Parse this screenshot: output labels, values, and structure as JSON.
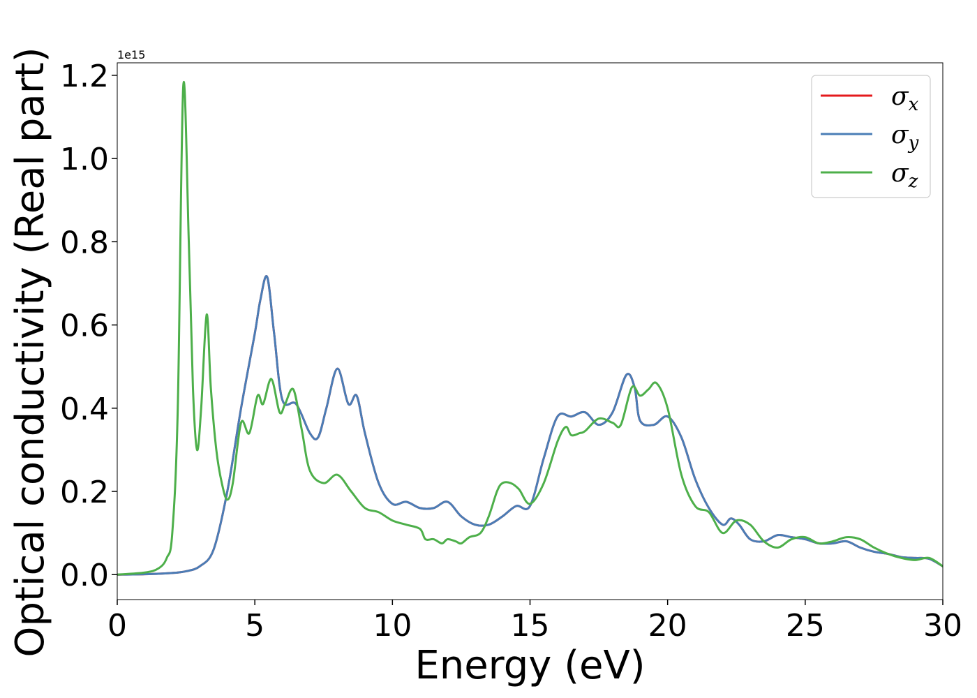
{
  "chart_data": {
    "type": "line",
    "xlabel": "Energy (eV)",
    "ylabel": "Optical conductivity (Real part)",
    "y_offset_label": "1e15",
    "y_scale": 1000000000000000.0,
    "xlim": [
      0,
      30
    ],
    "ylim": [
      -0.06,
      1.23
    ],
    "xticks": [
      0,
      5,
      10,
      15,
      20,
      25,
      30
    ],
    "xtick_labels": [
      "0",
      "5",
      "10",
      "15",
      "20",
      "25",
      "30"
    ],
    "yticks": [
      0.0,
      0.2,
      0.4,
      0.6,
      0.8,
      1.0,
      1.2
    ],
    "ytick_labels": [
      "0.0",
      "0.2",
      "0.4",
      "0.6",
      "0.8",
      "1.0",
      "1.2"
    ],
    "grid": false,
    "legend_position": "top-right",
    "series": [
      {
        "name": "σx",
        "symbol": "σ",
        "subscript": "x",
        "color": "#e41a1c",
        "x": [
          0,
          1.0,
          2.0,
          2.5,
          3.0,
          3.5,
          4.0,
          4.5,
          5.0,
          5.2,
          5.45,
          5.7,
          6.0,
          6.5,
          7.0,
          7.3,
          7.6,
          8.0,
          8.4,
          8.7,
          9.0,
          9.5,
          10.0,
          10.5,
          11.0,
          11.5,
          12.0,
          12.5,
          13.0,
          13.5,
          14.0,
          14.5,
          15.0,
          15.5,
          16.0,
          16.5,
          17.0,
          17.5,
          18.0,
          18.5,
          18.8,
          19.0,
          19.5,
          20.0,
          20.5,
          21.0,
          21.5,
          22.0,
          22.3,
          22.6,
          23.0,
          23.5,
          24.0,
          24.5,
          25.0,
          25.5,
          26.0,
          26.5,
          27.0,
          27.5,
          28.0,
          28.5,
          29.0,
          29.5,
          30.0
        ],
        "y": [
          0.0,
          0.001,
          0.004,
          0.008,
          0.02,
          0.06,
          0.2,
          0.4,
          0.58,
          0.66,
          0.715,
          0.58,
          0.42,
          0.41,
          0.34,
          0.33,
          0.4,
          0.495,
          0.41,
          0.43,
          0.34,
          0.22,
          0.17,
          0.175,
          0.16,
          0.16,
          0.175,
          0.14,
          0.12,
          0.12,
          0.14,
          0.165,
          0.165,
          0.28,
          0.38,
          0.38,
          0.39,
          0.36,
          0.39,
          0.48,
          0.45,
          0.37,
          0.36,
          0.38,
          0.33,
          0.23,
          0.16,
          0.12,
          0.135,
          0.12,
          0.085,
          0.08,
          0.095,
          0.09,
          0.085,
          0.075,
          0.075,
          0.08,
          0.065,
          0.055,
          0.05,
          0.042,
          0.04,
          0.038,
          0.02
        ]
      },
      {
        "name": "σy",
        "symbol": "σ",
        "subscript": "y",
        "color": "#4a7db6",
        "x": [
          0,
          1.0,
          2.0,
          2.5,
          3.0,
          3.5,
          4.0,
          4.5,
          5.0,
          5.2,
          5.45,
          5.7,
          6.0,
          6.5,
          7.0,
          7.3,
          7.6,
          8.0,
          8.4,
          8.7,
          9.0,
          9.5,
          10.0,
          10.5,
          11.0,
          11.5,
          12.0,
          12.5,
          13.0,
          13.5,
          14.0,
          14.5,
          15.0,
          15.5,
          16.0,
          16.5,
          17.0,
          17.5,
          18.0,
          18.5,
          18.8,
          19.0,
          19.5,
          20.0,
          20.5,
          21.0,
          21.5,
          22.0,
          22.3,
          22.6,
          23.0,
          23.5,
          24.0,
          24.5,
          25.0,
          25.5,
          26.0,
          26.5,
          27.0,
          27.5,
          28.0,
          28.5,
          29.0,
          29.5,
          30.0
        ],
        "y": [
          0.0,
          0.001,
          0.004,
          0.008,
          0.02,
          0.06,
          0.2,
          0.4,
          0.58,
          0.66,
          0.715,
          0.58,
          0.42,
          0.41,
          0.34,
          0.33,
          0.4,
          0.495,
          0.41,
          0.43,
          0.34,
          0.22,
          0.17,
          0.175,
          0.16,
          0.16,
          0.175,
          0.14,
          0.12,
          0.12,
          0.14,
          0.165,
          0.165,
          0.28,
          0.38,
          0.38,
          0.39,
          0.36,
          0.39,
          0.48,
          0.45,
          0.37,
          0.36,
          0.38,
          0.33,
          0.23,
          0.16,
          0.12,
          0.135,
          0.12,
          0.085,
          0.08,
          0.095,
          0.09,
          0.085,
          0.075,
          0.075,
          0.08,
          0.065,
          0.055,
          0.05,
          0.042,
          0.04,
          0.038,
          0.02
        ]
      },
      {
        "name": "σz",
        "symbol": "σ",
        "subscript": "z",
        "color": "#4daf4a",
        "x": [
          0,
          1.0,
          1.5,
          1.8,
          2.0,
          2.2,
          2.4,
          2.6,
          2.75,
          2.9,
          3.05,
          3.25,
          3.4,
          3.6,
          3.8,
          4.0,
          4.2,
          4.5,
          4.8,
          5.1,
          5.3,
          5.6,
          5.9,
          6.1,
          6.4,
          6.7,
          7.0,
          7.5,
          8.0,
          8.5,
          9.0,
          9.5,
          10.0,
          10.5,
          11.0,
          11.2,
          11.5,
          11.8,
          12.0,
          12.3,
          12.5,
          12.8,
          13.2,
          13.5,
          13.8,
          14.0,
          14.3,
          14.6,
          15.0,
          15.5,
          16.0,
          16.3,
          16.5,
          16.8,
          17.0,
          17.5,
          18.0,
          18.3,
          18.7,
          19.0,
          19.3,
          19.6,
          20.0,
          20.5,
          21.0,
          21.5,
          22.0,
          22.5,
          23.0,
          23.5,
          24.0,
          24.5,
          25.0,
          25.5,
          26.0,
          26.5,
          27.0,
          27.5,
          28.0,
          28.5,
          29.0,
          29.5,
          30.0
        ],
        "y": [
          0.0,
          0.005,
          0.015,
          0.04,
          0.1,
          0.4,
          1.175,
          0.8,
          0.45,
          0.3,
          0.4,
          0.625,
          0.45,
          0.3,
          0.22,
          0.18,
          0.22,
          0.365,
          0.34,
          0.43,
          0.41,
          0.47,
          0.39,
          0.41,
          0.445,
          0.35,
          0.25,
          0.22,
          0.24,
          0.2,
          0.16,
          0.15,
          0.13,
          0.12,
          0.11,
          0.085,
          0.085,
          0.075,
          0.085,
          0.08,
          0.075,
          0.09,
          0.1,
          0.14,
          0.2,
          0.22,
          0.22,
          0.205,
          0.17,
          0.22,
          0.32,
          0.355,
          0.335,
          0.34,
          0.345,
          0.375,
          0.365,
          0.36,
          0.45,
          0.43,
          0.445,
          0.46,
          0.4,
          0.24,
          0.165,
          0.15,
          0.1,
          0.13,
          0.12,
          0.08,
          0.065,
          0.085,
          0.09,
          0.075,
          0.08,
          0.09,
          0.085,
          0.065,
          0.05,
          0.04,
          0.035,
          0.04,
          0.02
        ]
      }
    ]
  }
}
